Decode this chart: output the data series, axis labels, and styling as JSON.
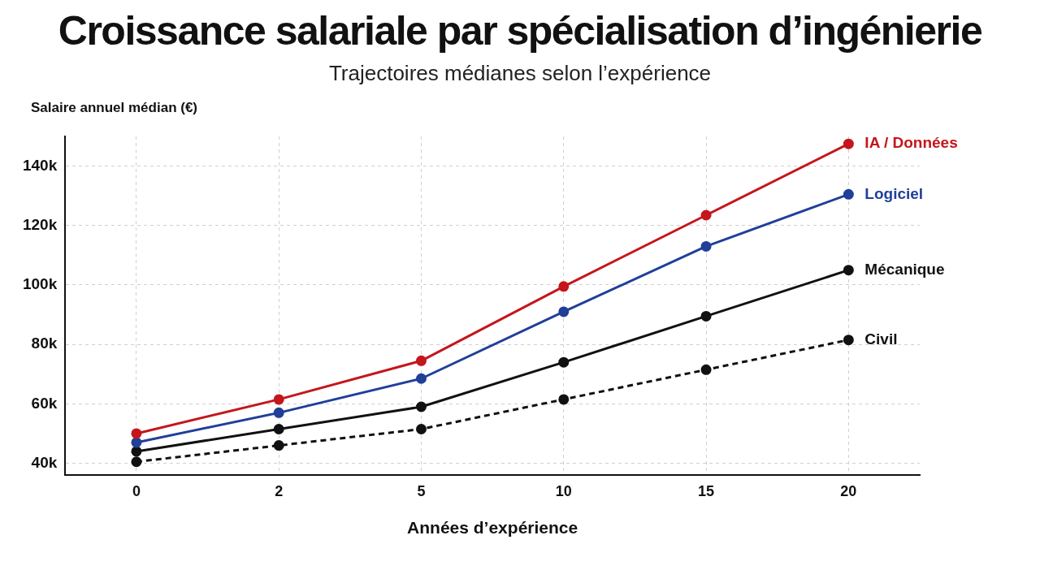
{
  "chart_data": {
    "type": "line",
    "title": "Croissance salariale par spécialisation d’ingénierie",
    "subtitle": "Trajectoires médianes selon l’expérience",
    "xlabel": "Années d’expérience",
    "ylabel": "Salaire annuel médian (€)",
    "categories": [
      "0",
      "2",
      "5",
      "10",
      "15",
      "20"
    ],
    "series": [
      {
        "name": "IA / Données",
        "color": "#c4161c",
        "values": [
          50000,
          61500,
          74500,
          99500,
          123500,
          147500
        ]
      },
      {
        "name": "Logiciel",
        "color": "#1f3f99",
        "values": [
          47000,
          57000,
          68500,
          91000,
          113000,
          130500
        ]
      },
      {
        "name": "Mécanique",
        "color": "#111111",
        "values": [
          44000,
          51500,
          59000,
          74000,
          89500,
          105000
        ]
      },
      {
        "name": "Civil",
        "color": "#111111",
        "values": [
          40500,
          46000,
          51500,
          61500,
          71500,
          81500
        ],
        "line_style": "dashed"
      }
    ],
    "ylim": [
      36000,
      150000
    ],
    "yticks": [
      {
        "value": 40000,
        "label": "40k"
      },
      {
        "value": 60000,
        "label": "60k"
      },
      {
        "value": 80000,
        "label": "80k"
      },
      {
        "value": 100000,
        "label": "100k"
      },
      {
        "value": 120000,
        "label": "120k"
      },
      {
        "value": 140000,
        "label": "140k"
      }
    ],
    "grid": true,
    "legend": false,
    "marker": "circle",
    "line_style": "solid"
  }
}
